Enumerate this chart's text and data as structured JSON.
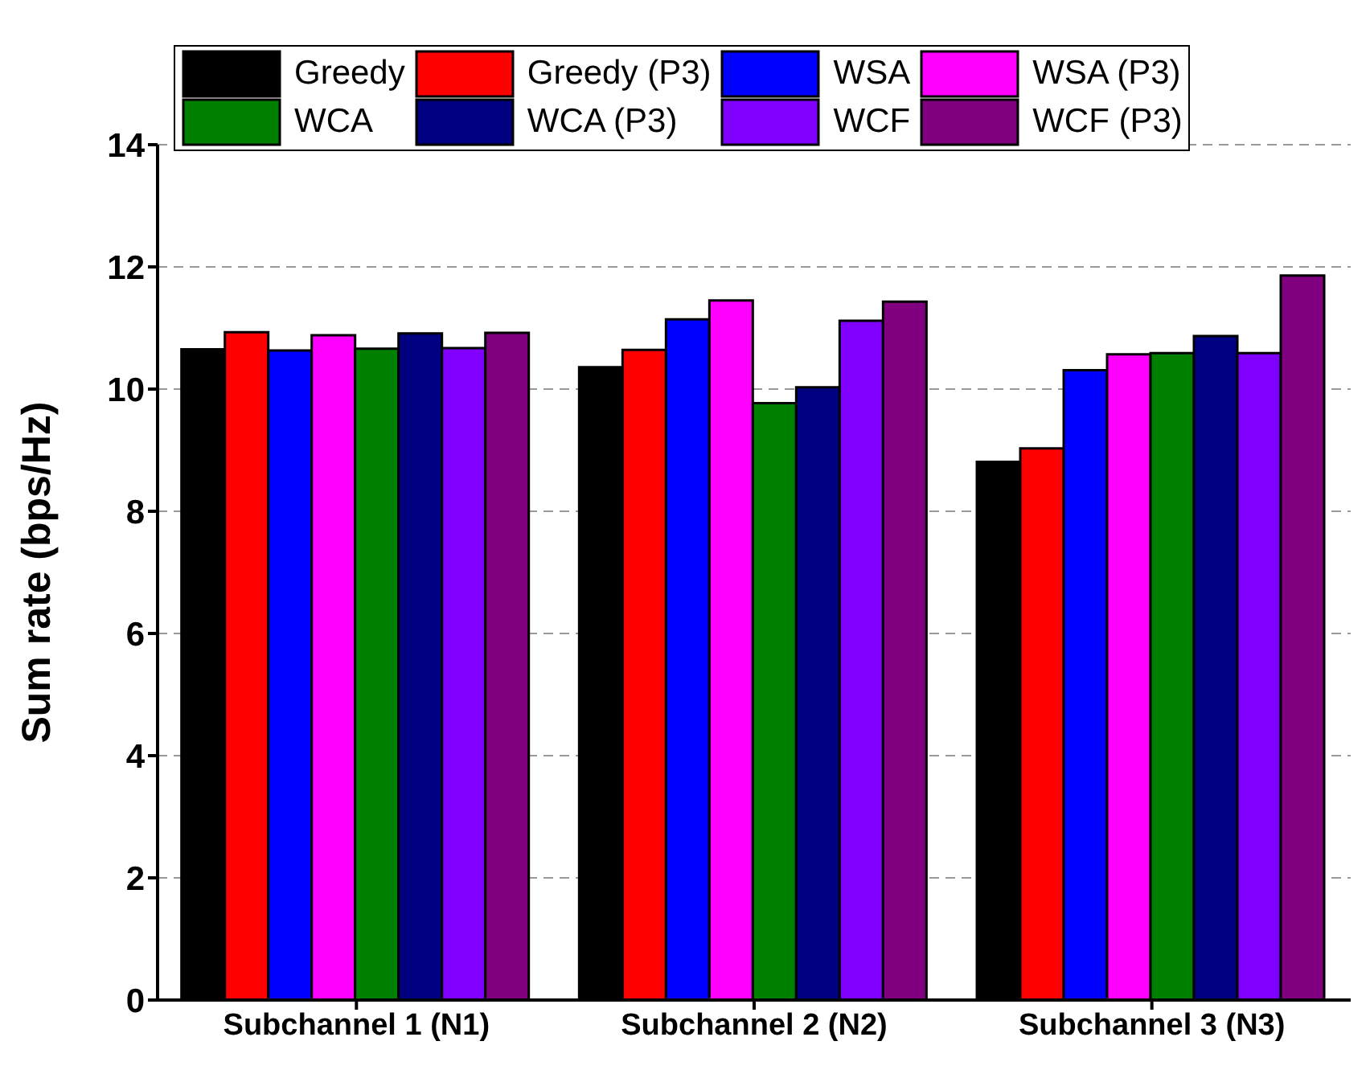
{
  "chart_data": {
    "type": "bar",
    "ylabel": "Sum rate (bps/Hz)",
    "categories": [
      "Subchannel 1 (N1)",
      "Subchannel 2 (N2)",
      "Subchannel 3 (N3)"
    ],
    "ylim": [
      0,
      14
    ],
    "yticks": [
      0,
      2,
      4,
      6,
      8,
      10,
      12,
      14
    ],
    "grid": "y",
    "legend": "top",
    "series": [
      {
        "name": "Greedy",
        "color": "#000000",
        "values": [
          10.65,
          10.36,
          8.81
        ]
      },
      {
        "name": "Greedy (P3)",
        "color": "#ff0000",
        "values": [
          10.93,
          10.64,
          9.03
        ]
      },
      {
        "name": "WSA",
        "color": "#0000ff",
        "values": [
          10.63,
          11.14,
          10.31
        ]
      },
      {
        "name": "WSA (P3)",
        "color": "#ff00ff",
        "values": [
          10.88,
          11.45,
          10.57
        ]
      },
      {
        "name": "WCA",
        "color": "#008000",
        "values": [
          10.66,
          9.77,
          10.59
        ]
      },
      {
        "name": "WCA (P3)",
        "color": "#000080",
        "values": [
          10.91,
          10.03,
          10.87
        ]
      },
      {
        "name": "WCF",
        "color": "#8000ff",
        "values": [
          10.67,
          11.12,
          10.59
        ]
      },
      {
        "name": "WCF (P3)",
        "color": "#800080",
        "values": [
          10.92,
          11.43,
          11.86
        ]
      }
    ]
  }
}
